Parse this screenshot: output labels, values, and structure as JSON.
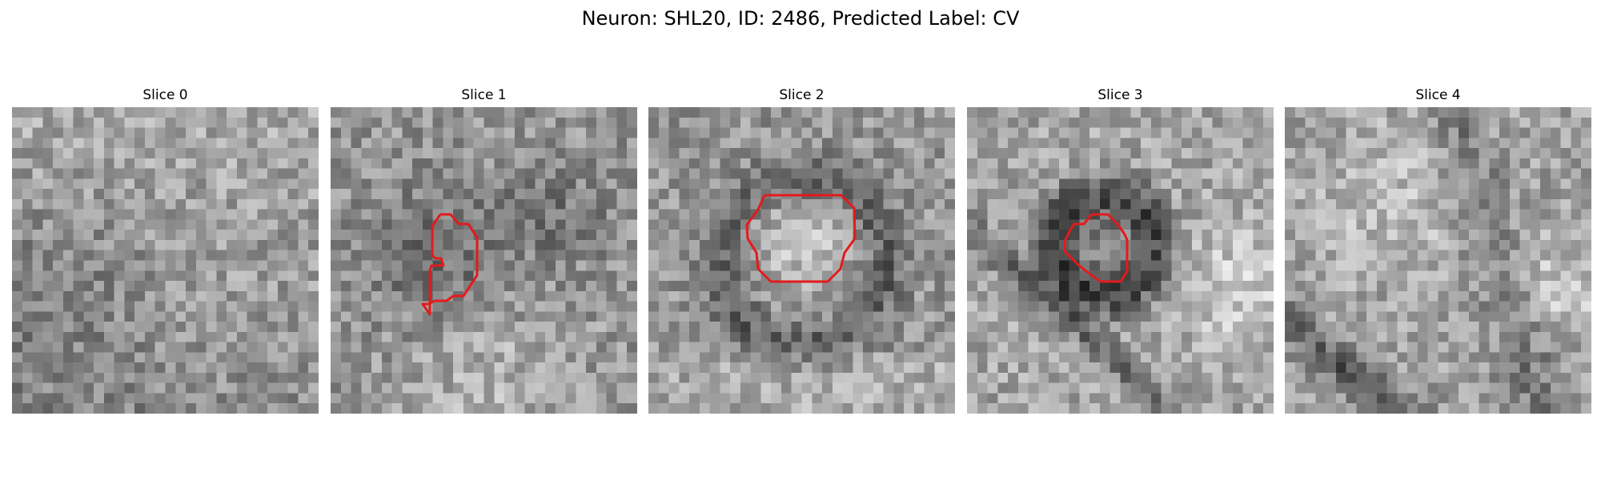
{
  "figure": {
    "title": "Neuron: SHL20, ID: 2486, Predicted Label: CV"
  },
  "panels": [
    {
      "title": "Slice 0"
    },
    {
      "title": "Slice 1"
    },
    {
      "title": "Slice 2"
    },
    {
      "title": "Slice 3"
    },
    {
      "title": "Slice 4"
    }
  ],
  "colors": {
    "contour": "#e31a1c",
    "background": "#ffffff"
  }
}
